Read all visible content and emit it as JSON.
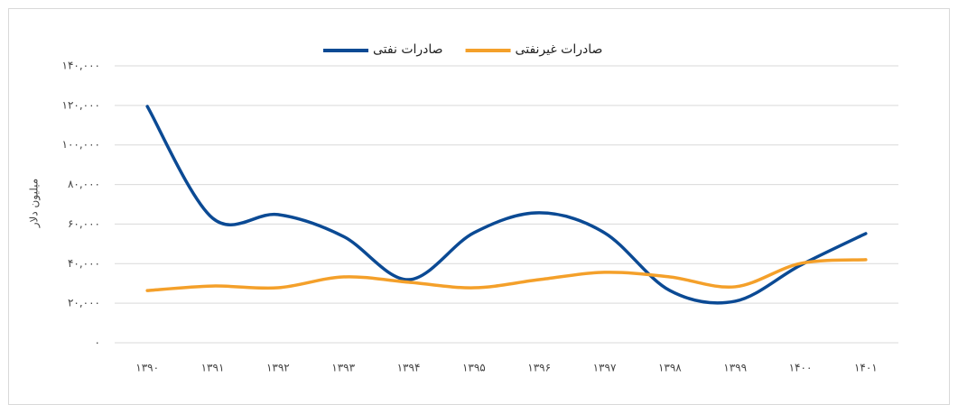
{
  "chart_data": {
    "type": "line",
    "ylabel": "میلیون دلار",
    "categories": [
      "۱۳۹۰",
      "۱۳۹۱",
      "۱۳۹۲",
      "۱۳۹۳",
      "۱۳۹۴",
      "۱۳۹۵",
      "۱۳۹۶",
      "۱۳۹۷",
      "۱۳۹۸",
      "۱۳۹۹",
      "۱۴۰۰",
      "۱۴۰۱"
    ],
    "series": [
      {
        "name": "صادرات نفتی",
        "color": "#0b4a94",
        "values": [
          119500,
          63000,
          64800,
          53800,
          31900,
          55600,
          65700,
          55600,
          26400,
          21000,
          39200,
          55200
        ]
      },
      {
        "name": "صادرات غیرنفتی",
        "color": "#f4a02a",
        "values": [
          26400,
          28700,
          27800,
          33300,
          30600,
          27800,
          31900,
          35600,
          33300,
          28300,
          40100,
          42000
        ]
      }
    ],
    "ylim": [
      0,
      140000
    ],
    "yticks": [
      {
        "value": 0,
        "label": "۰"
      },
      {
        "value": 20000,
        "label": "۲۰,۰۰۰"
      },
      {
        "value": 40000,
        "label": "۴۰,۰۰۰"
      },
      {
        "value": 60000,
        "label": "۶۰,۰۰۰"
      },
      {
        "value": 80000,
        "label": "۸۰,۰۰۰"
      },
      {
        "value": 100000,
        "label": "۱۰۰,۰۰۰"
      },
      {
        "value": 120000,
        "label": "۱۲۰,۰۰۰"
      },
      {
        "value": 140000,
        "label": "۱۴۰,۰۰۰"
      }
    ],
    "grid": true,
    "smooth": true,
    "legend": "top"
  }
}
